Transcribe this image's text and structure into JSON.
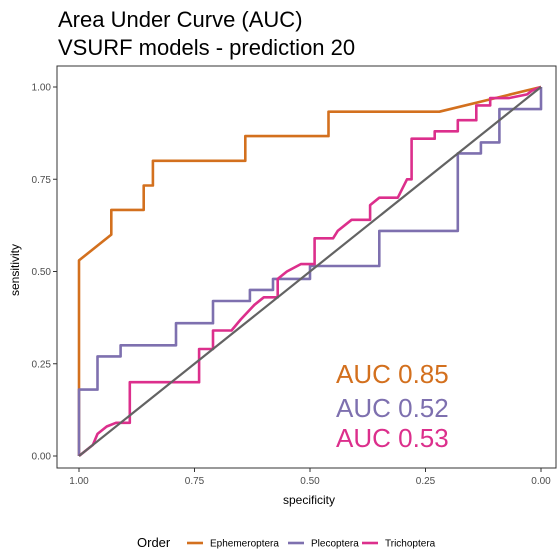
{
  "chart_data": {
    "type": "line",
    "title": [
      "Area Under Curve (AUC)",
      "VSURF models - prediction 20"
    ],
    "xlabel": "specificity",
    "ylabel": "sensitivity",
    "xlim": [
      1.0,
      0.0
    ],
    "ylim": [
      0.0,
      1.0
    ],
    "x_reversed": true,
    "x_ticks": [
      1.0,
      0.75,
      0.5,
      0.25,
      0.0
    ],
    "x_tick_labels": [
      "1.00",
      "0.75",
      "0.50",
      "0.25",
      "0.00"
    ],
    "y_ticks": [
      0.0,
      0.25,
      0.5,
      0.75,
      1.0
    ],
    "y_tick_labels": [
      "0.00",
      "0.25",
      "0.50",
      "0.75",
      "1.00"
    ],
    "grid": false,
    "legend": {
      "title": "Order",
      "position": "bottom"
    },
    "reference_line": {
      "from": [
        1.0,
        0.0
      ],
      "to": [
        0.0,
        1.0
      ],
      "color": "#636363"
    },
    "series": [
      {
        "name": "Ephemeroptera",
        "color": "#D3701E",
        "auc_label": "AUC 0.85",
        "points": [
          [
            1.0,
            0.0
          ],
          [
            1.0,
            0.18
          ],
          [
            1.0,
            0.53
          ],
          [
            0.93,
            0.6
          ],
          [
            0.93,
            0.667
          ],
          [
            0.86,
            0.667
          ],
          [
            0.86,
            0.733
          ],
          [
            0.84,
            0.733
          ],
          [
            0.84,
            0.8
          ],
          [
            0.64,
            0.8
          ],
          [
            0.64,
            0.867
          ],
          [
            0.46,
            0.867
          ],
          [
            0.46,
            0.933
          ],
          [
            0.22,
            0.933
          ],
          [
            0.0,
            1.0
          ]
        ]
      },
      {
        "name": "Plecoptera",
        "color": "#7E70AF",
        "auc_label": "AUC 0.52",
        "points": [
          [
            1.0,
            0.0
          ],
          [
            1.0,
            0.18
          ],
          [
            0.96,
            0.18
          ],
          [
            0.96,
            0.27
          ],
          [
            0.91,
            0.27
          ],
          [
            0.91,
            0.3
          ],
          [
            0.79,
            0.3
          ],
          [
            0.79,
            0.36
          ],
          [
            0.71,
            0.36
          ],
          [
            0.71,
            0.42
          ],
          [
            0.63,
            0.42
          ],
          [
            0.63,
            0.45
          ],
          [
            0.58,
            0.45
          ],
          [
            0.58,
            0.48
          ],
          [
            0.5,
            0.48
          ],
          [
            0.5,
            0.515
          ],
          [
            0.35,
            0.515
          ],
          [
            0.35,
            0.61
          ],
          [
            0.18,
            0.61
          ],
          [
            0.18,
            0.82
          ],
          [
            0.13,
            0.82
          ],
          [
            0.13,
            0.85
          ],
          [
            0.09,
            0.85
          ],
          [
            0.09,
            0.94
          ],
          [
            0.0,
            0.94
          ],
          [
            0.0,
            1.0
          ]
        ]
      },
      {
        "name": "Trichoptera",
        "color": "#DC2F8C",
        "auc_label": "AUC 0.53",
        "points": [
          [
            1.0,
            0.0
          ],
          [
            0.97,
            0.03
          ],
          [
            0.96,
            0.06
          ],
          [
            0.94,
            0.08
          ],
          [
            0.92,
            0.09
          ],
          [
            0.89,
            0.09
          ],
          [
            0.89,
            0.2
          ],
          [
            0.74,
            0.2
          ],
          [
            0.74,
            0.29
          ],
          [
            0.71,
            0.29
          ],
          [
            0.71,
            0.34
          ],
          [
            0.67,
            0.34
          ],
          [
            0.65,
            0.37
          ],
          [
            0.62,
            0.41
          ],
          [
            0.6,
            0.43
          ],
          [
            0.57,
            0.43
          ],
          [
            0.57,
            0.48
          ],
          [
            0.55,
            0.5
          ],
          [
            0.52,
            0.52
          ],
          [
            0.49,
            0.52
          ],
          [
            0.49,
            0.59
          ],
          [
            0.45,
            0.59
          ],
          [
            0.44,
            0.61
          ],
          [
            0.41,
            0.64
          ],
          [
            0.37,
            0.64
          ],
          [
            0.37,
            0.68
          ],
          [
            0.35,
            0.7
          ],
          [
            0.31,
            0.7
          ],
          [
            0.29,
            0.75
          ],
          [
            0.28,
            0.75
          ],
          [
            0.28,
            0.86
          ],
          [
            0.23,
            0.86
          ],
          [
            0.23,
            0.88
          ],
          [
            0.18,
            0.88
          ],
          [
            0.18,
            0.91
          ],
          [
            0.14,
            0.91
          ],
          [
            0.14,
            0.95
          ],
          [
            0.11,
            0.95
          ],
          [
            0.11,
            0.97
          ],
          [
            0.07,
            0.97
          ],
          [
            0.03,
            0.98
          ],
          [
            0.02,
            0.99
          ],
          [
            0.0,
            1.0
          ]
        ]
      }
    ]
  }
}
